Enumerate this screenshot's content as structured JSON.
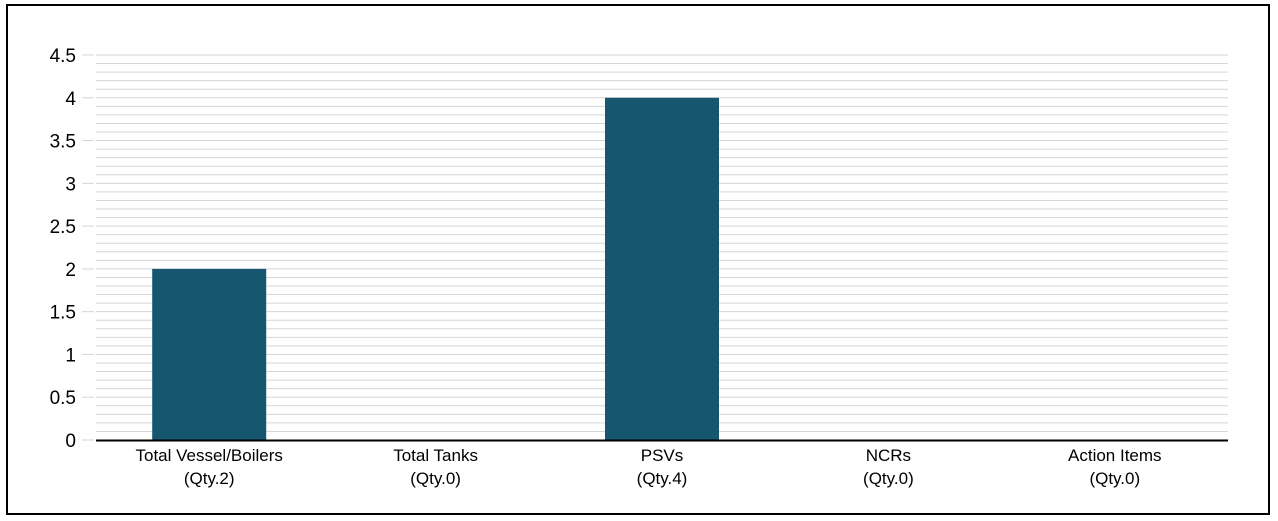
{
  "chart_data": {
    "type": "bar",
    "title": "",
    "xlabel": "",
    "ylabel": "",
    "categories": [
      [
        "Total Vessel/Boilers",
        "(Qty.2)"
      ],
      [
        "Total Tanks",
        "(Qty.0)"
      ],
      [
        "PSVs",
        "(Qty.4)"
      ],
      [
        "NCRs",
        "(Qty.0)"
      ],
      [
        "Action Items",
        "(Qty.0)"
      ]
    ],
    "values": [
      2,
      0,
      4,
      0,
      0
    ],
    "ylim": [
      0,
      4.5
    ],
    "yticks": [
      "0",
      "0.5",
      "1",
      "1.5",
      "2",
      "2.5",
      "3",
      "3.5",
      "4",
      "4.5"
    ],
    "minor_grid_step": 0.1,
    "grid": true,
    "legend": "none",
    "bar_color": "#17566f",
    "grid_color": "#d6d6d6",
    "axis_color": "#000000"
  }
}
